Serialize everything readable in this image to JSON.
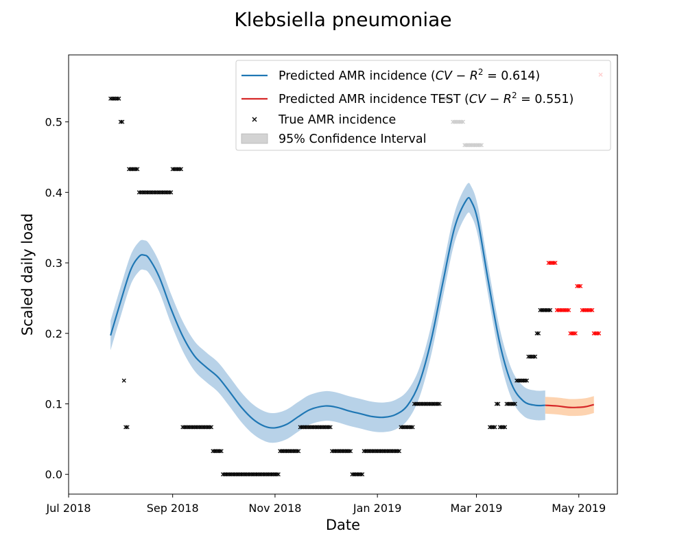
{
  "chart_data": {
    "type": "line",
    "title": "Klebsiella pneumoniae",
    "xlabel": "Date",
    "ylabel": "Scaled daily load",
    "x_tick_labels": [
      "Jul 2018",
      "Sep 2018",
      "Nov 2018",
      "Jan 2019",
      "Mar 2019",
      "May 2019"
    ],
    "x_ticks": [
      "2018-07-01",
      "2018-09-01",
      "2018-11-01",
      "2019-01-01",
      "2019-03-01",
      "2019-05-01"
    ],
    "y_tick_labels": [
      "0.0",
      "0.1",
      "0.2",
      "0.3",
      "0.4",
      "0.5"
    ],
    "y_ticks": [
      0.0,
      0.1,
      0.2,
      0.3,
      0.4,
      0.5
    ],
    "xlim": [
      "2018-07-01",
      "2019-05-24"
    ],
    "ylim": [
      -0.028,
      0.595
    ],
    "grid": false,
    "legend_position": "top-right",
    "legend": [
      {
        "label": "Predicted AMR incidence ($CV-R^2$ = 0.614)",
        "kind": "line",
        "color": "#1f77b4"
      },
      {
        "label": "Predicted AMR incidence TEST ($CV-R^2$ = 0.551)",
        "kind": "line",
        "color": "#d62728"
      },
      {
        "label": "True AMR incidence",
        "kind": "marker",
        "color": "#000000"
      },
      {
        "label": "95% Confidence Interval",
        "kind": "patch",
        "color": "#d3d3d3"
      }
    ],
    "series": [
      {
        "name": "Predicted AMR incidence",
        "role": "prediction",
        "color": "#1f77b4",
        "band_color": "#b8d2e8",
        "band_half_width": 0.021,
        "points": [
          [
            "2018-07-26",
            0.197
          ],
          [
            "2018-08-01",
            0.245
          ],
          [
            "2018-08-07",
            0.29
          ],
          [
            "2018-08-12",
            0.309
          ],
          [
            "2018-08-15",
            0.311
          ],
          [
            "2018-08-18",
            0.306
          ],
          [
            "2018-08-24",
            0.28
          ],
          [
            "2018-08-31",
            0.235
          ],
          [
            "2018-09-07",
            0.196
          ],
          [
            "2018-09-14",
            0.168
          ],
          [
            "2018-09-21",
            0.152
          ],
          [
            "2018-09-28",
            0.138
          ],
          [
            "2018-10-05",
            0.117
          ],
          [
            "2018-10-12",
            0.095
          ],
          [
            "2018-10-19",
            0.078
          ],
          [
            "2018-10-26",
            0.068
          ],
          [
            "2018-11-01",
            0.066
          ],
          [
            "2018-11-08",
            0.071
          ],
          [
            "2018-11-15",
            0.082
          ],
          [
            "2018-11-22",
            0.092
          ],
          [
            "2018-12-01",
            0.097
          ],
          [
            "2018-12-08",
            0.095
          ],
          [
            "2018-12-15",
            0.09
          ],
          [
            "2018-12-22",
            0.086
          ],
          [
            "2018-12-29",
            0.082
          ],
          [
            "2019-01-05",
            0.081
          ],
          [
            "2019-01-12",
            0.085
          ],
          [
            "2019-01-19",
            0.098
          ],
          [
            "2019-01-26",
            0.13
          ],
          [
            "2019-02-02",
            0.19
          ],
          [
            "2019-02-09",
            0.272
          ],
          [
            "2019-02-16",
            0.35
          ],
          [
            "2019-02-23",
            0.389
          ],
          [
            "2019-02-26",
            0.387
          ],
          [
            "2019-03-02",
            0.358
          ],
          [
            "2019-03-08",
            0.275
          ],
          [
            "2019-03-15",
            0.185
          ],
          [
            "2019-03-22",
            0.128
          ],
          [
            "2019-03-29",
            0.104
          ],
          [
            "2019-04-05",
            0.098
          ],
          [
            "2019-04-11",
            0.098
          ]
        ]
      },
      {
        "name": "Predicted AMR incidence TEST",
        "role": "prediction",
        "color": "#d62728",
        "band_color": "#fdd3b0",
        "band_half_width": 0.012,
        "points": [
          [
            "2019-04-11",
            0.098
          ],
          [
            "2019-04-18",
            0.097
          ],
          [
            "2019-04-25",
            0.095
          ],
          [
            "2019-04-30",
            0.095
          ],
          [
            "2019-05-05",
            0.096
          ],
          [
            "2019-05-10",
            0.099
          ]
        ]
      },
      {
        "name": "True AMR incidence",
        "role": "observed",
        "color": "#000000",
        "segments": [
          {
            "from": "2018-07-26",
            "to": "2018-07-31",
            "value": 0.533
          },
          {
            "from": "2018-08-01",
            "to": "2018-08-02",
            "value": 0.5
          },
          {
            "from": "2018-08-03",
            "to": "2018-08-03",
            "value": 0.133
          },
          {
            "from": "2018-08-04",
            "to": "2018-08-05",
            "value": 0.067
          },
          {
            "from": "2018-08-06",
            "to": "2018-08-11",
            "value": 0.433
          },
          {
            "from": "2018-08-12",
            "to": "2018-08-31",
            "value": 0.4
          },
          {
            "from": "2018-09-01",
            "to": "2018-09-06",
            "value": 0.433
          },
          {
            "from": "2018-09-07",
            "to": "2018-09-24",
            "value": 0.067
          },
          {
            "from": "2018-09-25",
            "to": "2018-09-30",
            "value": 0.033
          },
          {
            "from": "2018-10-01",
            "to": "2018-11-03",
            "value": 0.0
          },
          {
            "from": "2018-11-04",
            "to": "2018-11-15",
            "value": 0.033
          },
          {
            "from": "2018-11-16",
            "to": "2018-12-04",
            "value": 0.067
          },
          {
            "from": "2018-12-05",
            "to": "2018-12-16",
            "value": 0.033
          },
          {
            "from": "2018-12-17",
            "to": "2018-12-23",
            "value": 0.0
          },
          {
            "from": "2018-12-24",
            "to": "2019-01-14",
            "value": 0.033
          },
          {
            "from": "2019-01-15",
            "to": "2019-01-22",
            "value": 0.067
          },
          {
            "from": "2019-01-23",
            "to": "2019-02-07",
            "value": 0.1
          },
          {
            "from": "2019-02-08",
            "to": "2019-02-14",
            "value": 0.533
          },
          {
            "from": "2019-02-15",
            "to": "2019-02-21",
            "value": 0.5
          },
          {
            "from": "2019-02-22",
            "to": "2019-03-04",
            "value": 0.467
          },
          {
            "from": "2019-03-09",
            "to": "2019-03-12",
            "value": 0.067
          },
          {
            "from": "2019-03-13",
            "to": "2019-03-14",
            "value": 0.1
          },
          {
            "from": "2019-03-15",
            "to": "2019-03-18",
            "value": 0.067
          },
          {
            "from": "2019-03-19",
            "to": "2019-03-24",
            "value": 0.1
          },
          {
            "from": "2019-03-25",
            "to": "2019-03-31",
            "value": 0.133
          },
          {
            "from": "2019-04-01",
            "to": "2019-04-05",
            "value": 0.167
          },
          {
            "from": "2019-04-06",
            "to": "2019-04-07",
            "value": 0.2
          },
          {
            "from": "2019-04-08",
            "to": "2019-04-14",
            "value": 0.233
          }
        ]
      },
      {
        "name": "True AMR incidence TEST",
        "role": "observed",
        "color": "#ff0000",
        "segments": [
          {
            "from": "2019-04-13",
            "to": "2019-04-17",
            "value": 0.3
          },
          {
            "from": "2019-04-18",
            "to": "2019-04-25",
            "value": 0.233
          },
          {
            "from": "2019-04-26",
            "to": "2019-04-29",
            "value": 0.2
          },
          {
            "from": "2019-04-30",
            "to": "2019-05-02",
            "value": 0.267
          },
          {
            "from": "2019-05-03",
            "to": "2019-05-09",
            "value": 0.233
          },
          {
            "from": "2019-05-10",
            "to": "2019-05-13",
            "value": 0.2
          },
          {
            "from": "2019-05-14",
            "to": "2019-05-14",
            "value": 0.567
          }
        ]
      }
    ]
  }
}
